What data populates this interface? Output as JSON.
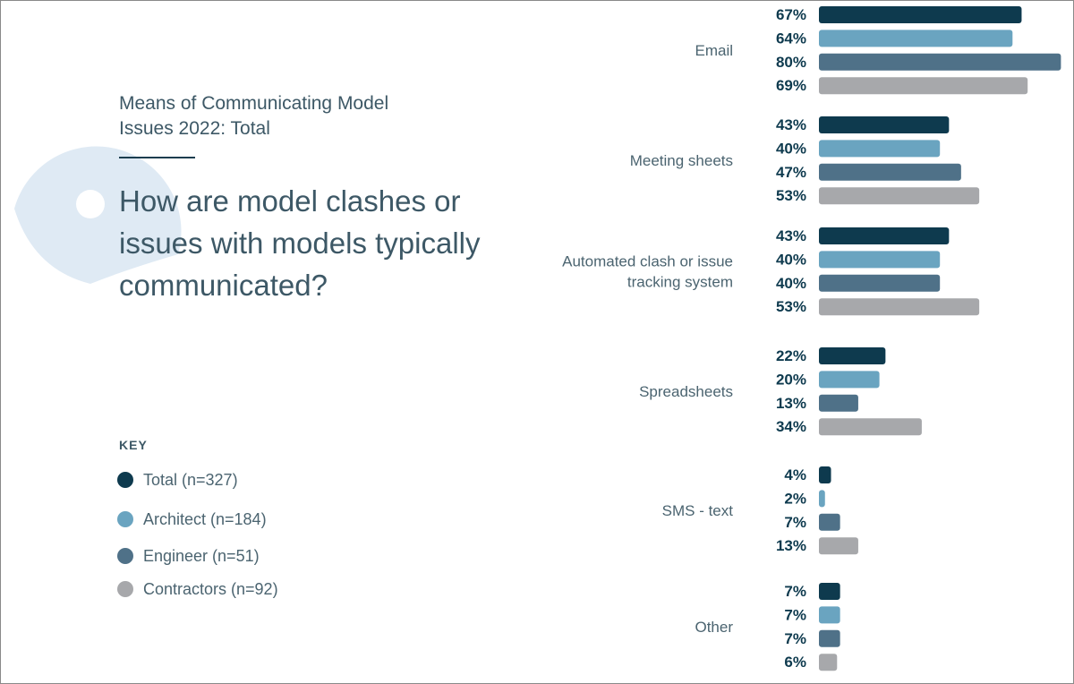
{
  "header": {
    "subtitle": "Means of Communicating Model Issues 2022: Total",
    "question": "How are model clashes or issues with models typically communicated?"
  },
  "key": {
    "title": "KEY",
    "items": [
      {
        "label": "Total (n=327)",
        "color": "#0e3a4e"
      },
      {
        "label": "Architect (n=184)",
        "color": "#6aa4c0"
      },
      {
        "label": "Engineer (n=51)",
        "color": "#4f7188"
      },
      {
        "label": "Contractors (n=92)",
        "color": "#a7a8ab"
      }
    ]
  },
  "chart_data": {
    "type": "bar",
    "orientation": "horizontal",
    "categories": [
      "Email",
      "Meeting sheets",
      "Automated clash or issue tracking system",
      "Spreadsheets",
      "SMS - text",
      "Other"
    ],
    "category_lines": [
      [
        "Email"
      ],
      [
        "Meeting sheets"
      ],
      [
        "Automated clash or issue",
        "tracking system"
      ],
      [
        "Spreadsheets"
      ],
      [
        "SMS - text"
      ],
      [
        "Other"
      ]
    ],
    "series": [
      {
        "name": "Total (n=327)",
        "color": "#0e3a4e",
        "values": [
          67,
          43,
          43,
          22,
          4,
          7
        ]
      },
      {
        "name": "Architect (n=184)",
        "color": "#6aa4c0",
        "values": [
          64,
          40,
          40,
          20,
          2,
          7
        ]
      },
      {
        "name": "Engineer (n=51)",
        "color": "#4f7188",
        "values": [
          80,
          47,
          40,
          13,
          7,
          7
        ]
      },
      {
        "name": "Contractors (n=92)",
        "color": "#a7a8ab",
        "values": [
          69,
          53,
          53,
          34,
          13,
          6
        ]
      }
    ],
    "value_suffix": "%",
    "xlim": [
      0,
      80
    ],
    "grid": false,
    "legend": "left"
  }
}
